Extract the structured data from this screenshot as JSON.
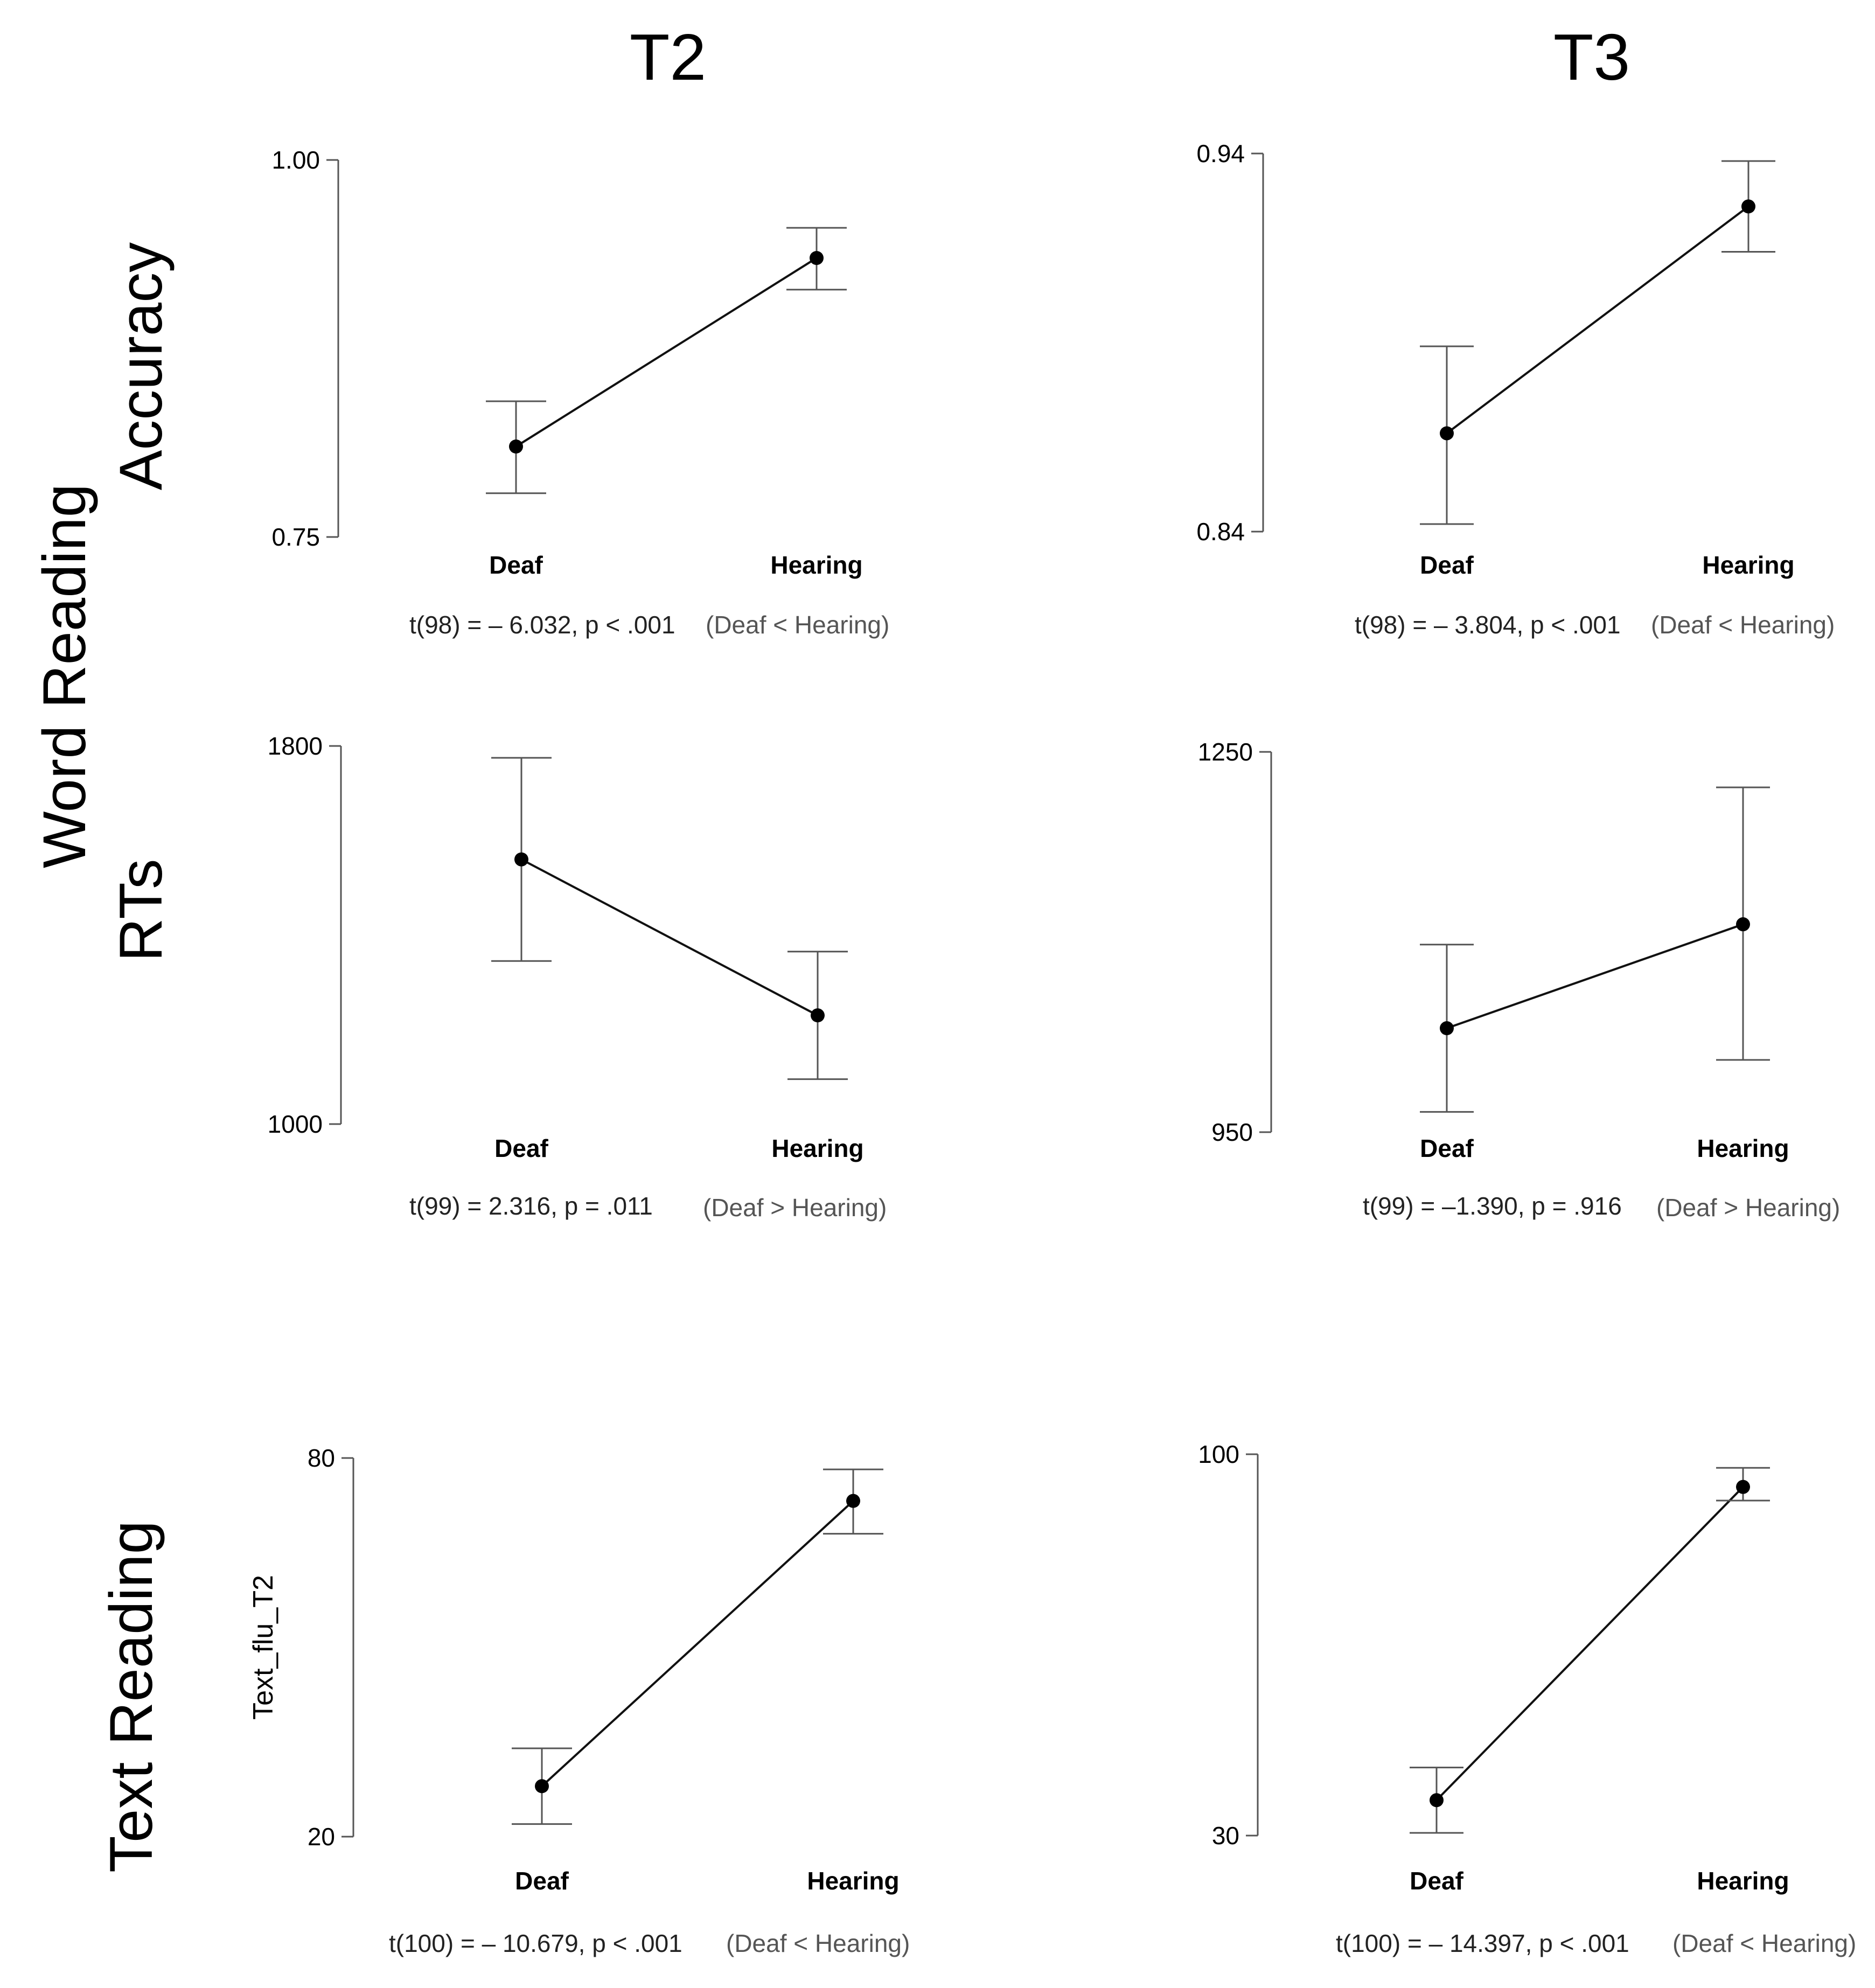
{
  "figure": {
    "column_titles": {
      "t2": "T2",
      "t3": "T3"
    },
    "row_titles": {
      "word_reading": "Word Reading",
      "accuracy": "Accuracy",
      "rts": "RTs",
      "text_reading": "Text Reading"
    }
  },
  "chart_data": [
    {
      "id": "acc_t2",
      "type": "line",
      "title": "Word Reading Accuracy - T2",
      "categories": [
        "Deaf",
        "Hearing"
      ],
      "values": [
        0.81,
        0.935
      ],
      "error_low": [
        0.779,
        0.914
      ],
      "error_high": [
        0.84,
        0.955
      ],
      "ylim": [
        0.75,
        1.0
      ],
      "yticks": [
        0.75,
        1.0
      ],
      "ytick_labels": [
        "0.75",
        "1.00"
      ],
      "xlabel": "",
      "ylabel": "",
      "stat": "t(98) = – 6.032, p < .001",
      "direction": "(Deaf < Hearing)"
    },
    {
      "id": "acc_t3",
      "type": "line",
      "title": "Word Reading Accuracy - T3",
      "categories": [
        "Deaf",
        "Hearing"
      ],
      "values": [
        0.866,
        0.926
      ],
      "error_low": [
        0.842,
        0.914
      ],
      "error_high": [
        0.889,
        0.938
      ],
      "ylim": [
        0.84,
        0.94
      ],
      "yticks": [
        0.84,
        0.94
      ],
      "ytick_labels": [
        "0.84",
        "0.94"
      ],
      "xlabel": "",
      "ylabel": "",
      "stat": "t(98) = – 3.804, p < .001",
      "direction": "(Deaf < Hearing)"
    },
    {
      "id": "rt_t2",
      "type": "line",
      "title": "Word Reading RTs - T2",
      "categories": [
        "Deaf",
        "Hearing"
      ],
      "values": [
        1560,
        1230
      ],
      "error_low": [
        1345,
        1095
      ],
      "error_high": [
        1775,
        1365
      ],
      "ylim": [
        1000,
        1800
      ],
      "yticks": [
        1000,
        1800
      ],
      "ytick_labels": [
        "1000",
        "1800"
      ],
      "xlabel": "",
      "ylabel": "",
      "stat": "t(99) = 2.316, p = .011",
      "direction": "(Deaf > Hearing)"
    },
    {
      "id": "rt_t3",
      "type": "line",
      "title": "Word Reading RTs - T3",
      "categories": [
        "Deaf",
        "Hearing"
      ],
      "values": [
        1032,
        1114
      ],
      "error_low": [
        966,
        1007
      ],
      "error_high": [
        1098,
        1222
      ],
      "ylim": [
        950,
        1250
      ],
      "yticks": [
        950,
        1250
      ],
      "ytick_labels": [
        "950",
        "1250"
      ],
      "xlabel": "",
      "ylabel": "",
      "stat": "t(99) = –1.390, p = .916",
      "direction": "(Deaf > Hearing)"
    },
    {
      "id": "text_t2",
      "type": "line",
      "title": "Text Reading - T2",
      "categories": [
        "Deaf",
        "Hearing"
      ],
      "values": [
        28,
        73.2
      ],
      "error_low": [
        22,
        68
      ],
      "error_high": [
        34,
        78.2
      ],
      "ylim": [
        20,
        80
      ],
      "yticks": [
        20,
        80
      ],
      "ytick_labels": [
        "20",
        "80"
      ],
      "xlabel": "",
      "ylabel": "Text_flu_T2",
      "stat": "t(100) = – 10.679, p < .001",
      "direction": "(Deaf < Hearing)"
    },
    {
      "id": "text_t3",
      "type": "line",
      "title": "Text Reading - T3",
      "categories": [
        "Deaf",
        "Hearing"
      ],
      "values": [
        36.5,
        94
      ],
      "error_low": [
        30.5,
        91.5
      ],
      "error_high": [
        42.5,
        97.5
      ],
      "ylim": [
        30,
        100
      ],
      "yticks": [
        30,
        100
      ],
      "ytick_labels": [
        "30",
        "100"
      ],
      "xlabel": "",
      "ylabel": "",
      "stat": "t(100) = – 14.397, p < .001",
      "direction": "(Deaf < Hearing)"
    }
  ]
}
